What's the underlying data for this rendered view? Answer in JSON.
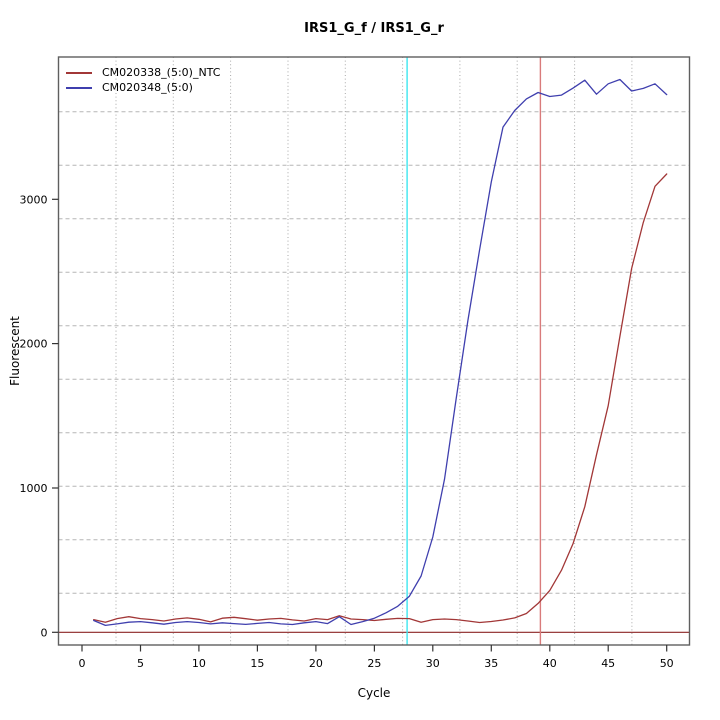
{
  "chart_data": {
    "type": "line",
    "title": "IRS1_G_f / IRS1_G_r",
    "xlabel": "Cycle",
    "ylabel": "Fluorescent",
    "x_ticks": [
      0,
      5,
      10,
      15,
      20,
      25,
      30,
      35,
      40,
      45,
      50
    ],
    "y_ticks": [
      0,
      1000,
      2000,
      3000
    ],
    "xlim": [
      -2,
      52
    ],
    "ylim": [
      -90,
      3985
    ],
    "grid": {
      "vertical_style": "dotted",
      "horizontal_style": "dashed",
      "color": "#a8a8a8"
    },
    "legend_position": "top-left",
    "cycles": [
      1,
      2,
      3,
      4,
      5,
      6,
      7,
      8,
      9,
      10,
      11,
      12,
      13,
      14,
      15,
      16,
      17,
      18,
      19,
      20,
      21,
      22,
      23,
      24,
      25,
      26,
      27,
      28,
      29,
      30,
      31,
      32,
      33,
      34,
      35,
      36,
      37,
      38,
      39,
      40,
      41,
      42,
      43,
      44,
      45,
      46,
      47,
      48,
      49,
      50
    ],
    "series": [
      {
        "name": "CM020338_(5:0)_NTC",
        "color": "#a23737",
        "values": [
          88,
          70,
          95,
          108,
          95,
          88,
          78,
          92,
          100,
          90,
          72,
          98,
          104,
          94,
          84,
          92,
          96,
          86,
          78,
          95,
          88,
          115,
          92,
          88,
          82,
          90,
          96,
          95,
          70,
          88,
          92,
          88,
          78,
          68,
          75,
          85,
          100,
          130,
          200,
          290,
          430,
          615,
          870,
          1230,
          1570,
          2050,
          2520,
          2840,
          3090,
          3175
        ]
      },
      {
        "name": "CM020348_(5:0)",
        "color": "#3f3fae",
        "values": [
          82,
          48,
          58,
          70,
          74,
          66,
          56,
          68,
          74,
          68,
          58,
          66,
          60,
          55,
          62,
          68,
          58,
          54,
          66,
          74,
          60,
          108,
          54,
          74,
          98,
          135,
          180,
          250,
          390,
          660,
          1060,
          1620,
          2160,
          2650,
          3120,
          3500,
          3615,
          3695,
          3740,
          3712,
          3722,
          3770,
          3825,
          3728,
          3800,
          3830,
          3750,
          3768,
          3800,
          3725
        ]
      }
    ],
    "baseline_line": {
      "y": 0,
      "color": "#8b2525"
    },
    "threshold_cycle_lines": [
      {
        "x": 27.8,
        "color": "#3ee6ef",
        "series": "CM020348_(5:0)"
      },
      {
        "x": 39.2,
        "color": "#d97b7b",
        "series": "CM020338_(5:0)_NTC"
      }
    ]
  }
}
